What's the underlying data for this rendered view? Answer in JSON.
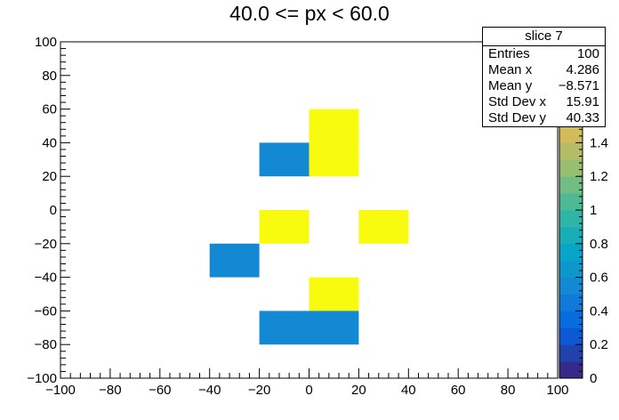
{
  "chart_data": {
    "type": "heatmap",
    "title": "40.0 <= px < 60.0",
    "xlabel": "",
    "ylabel": "",
    "xlim": [
      -100,
      100
    ],
    "ylim": [
      -100,
      100
    ],
    "x_ticks": [
      "−100",
      "−80",
      "−60",
      "−40",
      "−20",
      "0",
      "20",
      "40",
      "60",
      "80",
      "100"
    ],
    "y_ticks": [
      "−100",
      "−80",
      "−60",
      "−40",
      "−20",
      "0",
      "20",
      "40",
      "60",
      "80",
      "100"
    ],
    "bin_width": 20,
    "cells": [
      {
        "x": 0,
        "y": 40,
        "value": 2
      },
      {
        "x": 0,
        "y": 20,
        "value": 2
      },
      {
        "x": -20,
        "y": 20,
        "value": 1
      },
      {
        "x": -20,
        "y": -20,
        "value": 2
      },
      {
        "x": 20,
        "y": -20,
        "value": 2
      },
      {
        "x": -40,
        "y": -40,
        "value": 1
      },
      {
        "x": 0,
        "y": -60,
        "value": 2
      },
      {
        "x": -20,
        "y": -80,
        "value": 1
      },
      {
        "x": 0,
        "y": -80,
        "value": 1
      }
    ],
    "colorbar": {
      "zmin": 0,
      "zmax": 2,
      "visible_labels": [
        "0",
        "0.2",
        "0.4",
        "0.6",
        "0.8",
        "1",
        "1.2",
        "1.4"
      ],
      "low_color": "#352a87",
      "high_color": "#f9fb0e"
    },
    "grid": false
  },
  "stats_box": {
    "title": "slice 7",
    "rows": [
      {
        "label": "Entries",
        "value": "100"
      },
      {
        "label": "Mean x",
        "value": "4.286"
      },
      {
        "label": "Mean y",
        "value": "−8.571"
      },
      {
        "label": "Std Dev x",
        "value": "15.91"
      },
      {
        "label": "Std Dev y",
        "value": "40.33"
      }
    ]
  }
}
